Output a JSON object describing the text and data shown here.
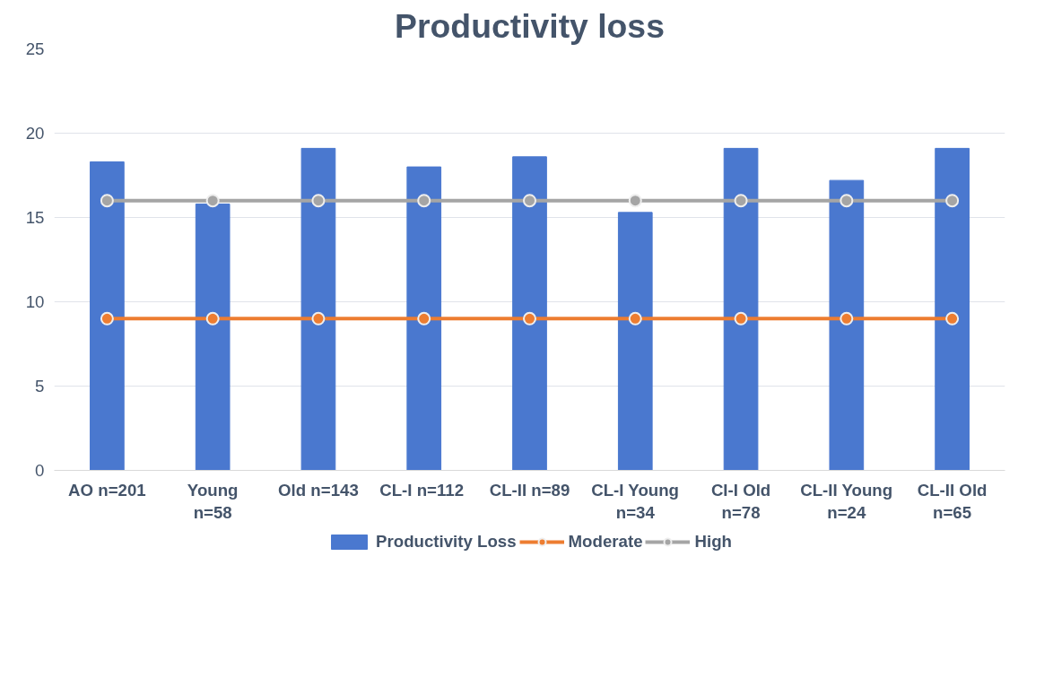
{
  "chart_data": {
    "type": "bar",
    "title": "Productivity loss",
    "categories": [
      "AO n=201",
      "Young\nn=58",
      "Old n=143",
      "CL-I  n=112",
      "CL-II n=89",
      "CL-I Young\nn=34",
      "CI-I Old\nn=78",
      "CL-II Young\nn=24",
      "CL-II Old\nn=65"
    ],
    "series": [
      {
        "name": "Productivity Loss",
        "color": "#4a78cf",
        "values": [
          18.3,
          15.8,
          19.1,
          18.0,
          18.6,
          15.3,
          19.1,
          17.2,
          19.1
        ]
      },
      {
        "name": "Moderate",
        "type": "line",
        "color": "#ed7d31",
        "values": [
          9,
          9,
          9,
          9,
          9,
          9,
          9,
          9,
          9
        ]
      },
      {
        "name": "High",
        "type": "line",
        "color": "#a5a5a5",
        "values": [
          16,
          16,
          16,
          16,
          16,
          16,
          16,
          16,
          16
        ]
      }
    ],
    "ylim": [
      0,
      25
    ],
    "yticks": [
      0,
      5,
      10,
      15,
      20,
      25
    ],
    "grid": "y",
    "legend": "bottom",
    "marker": "circle"
  }
}
